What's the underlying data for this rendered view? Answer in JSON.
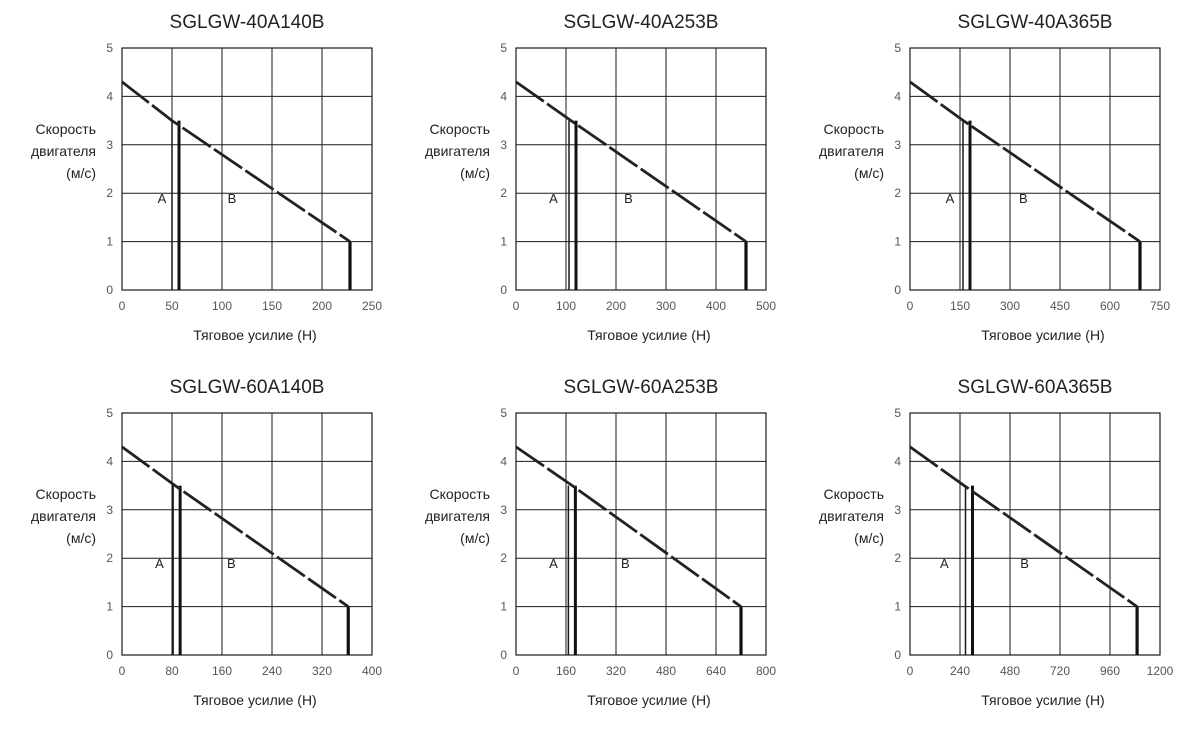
{
  "chart_data": [
    {
      "type": "line",
      "title": "SGLGW-40A140B",
      "xlabel": "Тяговое усилие (Н)",
      "ylabel": [
        "Скорость",
        "двигателя",
        "(м/с)"
      ],
      "xticks": [
        "0",
        "50",
        "100",
        "150",
        "200",
        "250"
      ],
      "yticks": [
        "0",
        "1",
        "2",
        "3",
        "4",
        "5"
      ],
      "xlim": [
        0,
        250
      ],
      "ylim": [
        0,
        5
      ],
      "grid": true,
      "regions": [
        "A",
        "B"
      ],
      "region_positions_x": [
        40,
        110
      ],
      "series": [
        {
          "x": [
            0,
            50,
            228,
            228
          ],
          "y": [
            4.3,
            3.5,
            1.0,
            0
          ]
        }
      ],
      "boundary": {
        "x": 57,
        "ymax": 3.5
      }
    },
    {
      "type": "line",
      "title": "SGLGW-40A253B",
      "xlabel": "Тяговое усилие (Н)",
      "ylabel": [
        "Скорость",
        "двигателя",
        "(м/с)"
      ],
      "xticks": [
        "0",
        "100",
        "200",
        "300",
        "400",
        "500"
      ],
      "yticks": [
        "0",
        "1",
        "2",
        "3",
        "4",
        "5"
      ],
      "xlim": [
        0,
        500
      ],
      "ylim": [
        0,
        5
      ],
      "grid": true,
      "regions": [
        "A",
        "B"
      ],
      "region_positions_x": [
        75,
        225
      ],
      "series": [
        {
          "x": [
            0,
            110,
            460,
            460
          ],
          "y": [
            4.3,
            3.5,
            1.0,
            0
          ]
        }
      ],
      "boundary": {
        "x": 120,
        "ymax": 3.5
      }
    },
    {
      "type": "line",
      "title": "SGLGW-40A365B",
      "xlabel": "Тяговое усилие (Н)",
      "ylabel": [
        "Скорость",
        "двигателя",
        "(м/с)"
      ],
      "xticks": [
        "0",
        "150",
        "300",
        "450",
        "600",
        "750"
      ],
      "yticks": [
        "0",
        "1",
        "2",
        "3",
        "4",
        "5"
      ],
      "xlim": [
        0,
        750
      ],
      "ylim": [
        0,
        5
      ],
      "grid": true,
      "regions": [
        "A",
        "B"
      ],
      "region_positions_x": [
        120,
        340
      ],
      "series": [
        {
          "x": [
            0,
            160,
            690,
            690
          ],
          "y": [
            4.3,
            3.5,
            1.0,
            0
          ]
        }
      ],
      "boundary": {
        "x": 180,
        "ymax": 3.5
      }
    },
    {
      "type": "line",
      "title": "SGLGW-60A140B",
      "xlabel": "Тяговое усилие (Н)",
      "ylabel": [
        "Скорость",
        "двигателя",
        "(м/с)"
      ],
      "xticks": [
        "0",
        "80",
        "160",
        "240",
        "320",
        "400"
      ],
      "yticks": [
        "0",
        "1",
        "2",
        "3",
        "4",
        "5"
      ],
      "xlim": [
        0,
        400
      ],
      "ylim": [
        0,
        5
      ],
      "grid": true,
      "regions": [
        "A",
        "B"
      ],
      "region_positions_x": [
        60,
        175
      ],
      "series": [
        {
          "x": [
            0,
            85,
            362,
            362
          ],
          "y": [
            4.3,
            3.5,
            1.0,
            0
          ]
        }
      ],
      "boundary": {
        "x": 93,
        "ymax": 3.5
      }
    },
    {
      "type": "line",
      "title": "SGLGW-60A253B",
      "xlabel": "Тяговое усилие (Н)",
      "ylabel": [
        "Скорость",
        "двигателя",
        "(м/с)"
      ],
      "xticks": [
        "0",
        "160",
        "320",
        "480",
        "640",
        "800"
      ],
      "yticks": [
        "0",
        "1",
        "2",
        "3",
        "4",
        "5"
      ],
      "xlim": [
        0,
        800
      ],
      "ylim": [
        0,
        5
      ],
      "grid": true,
      "regions": [
        "A",
        "B"
      ],
      "region_positions_x": [
        120,
        350
      ],
      "series": [
        {
          "x": [
            0,
            180,
            720,
            720
          ],
          "y": [
            4.3,
            3.5,
            1.0,
            0
          ]
        }
      ],
      "boundary": {
        "x": 190,
        "ymax": 3.5
      }
    },
    {
      "type": "line",
      "title": "SGLGW-60A365B",
      "xlabel": "Тяговое усилие (Н)",
      "ylabel": [
        "Скорость",
        "двигателя",
        "(м/с)"
      ],
      "xticks": [
        "0",
        "240",
        "480",
        "720",
        "960",
        "1200"
      ],
      "yticks": [
        "0",
        "1",
        "2",
        "3",
        "4",
        "5"
      ],
      "xlim": [
        0,
        1200
      ],
      "ylim": [
        0,
        5
      ],
      "grid": true,
      "regions": [
        "A",
        "B"
      ],
      "region_positions_x": [
        165,
        550
      ],
      "series": [
        {
          "x": [
            0,
            260,
            1090,
            1090
          ],
          "y": [
            4.3,
            3.5,
            1.0,
            0
          ]
        }
      ],
      "boundary": {
        "x": 300,
        "ymax": 3.5
      }
    }
  ]
}
